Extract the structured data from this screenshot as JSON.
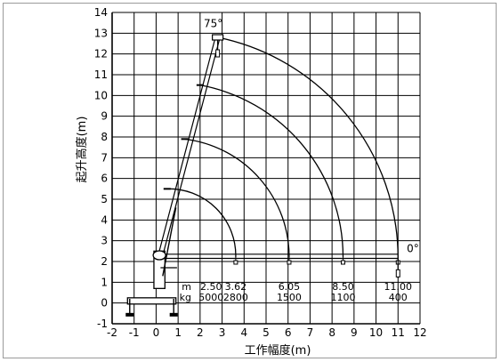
{
  "chart_data": {
    "type": "diagram",
    "xlabel": "工作幅度(m)",
    "ylabel": "起升高度(m)",
    "x_ticks": [
      "-2",
      "-1",
      "0",
      "1",
      "2",
      "3",
      "4",
      "5",
      "6",
      "7",
      "8",
      "9",
      "10",
      "11",
      "12"
    ],
    "y_ticks": [
      "-1",
      "0",
      "1",
      "2",
      "3",
      "4",
      "5",
      "6",
      "7",
      "8",
      "9",
      "10",
      "11",
      "12",
      "13",
      "14"
    ],
    "xlim": [
      -2,
      12
    ],
    "ylim": [
      -1,
      14
    ],
    "grid": true,
    "angle_labels": {
      "max": "75°",
      "min": "0°"
    },
    "boom_pivot": {
      "x": 0.2,
      "y": 2.3
    },
    "boom_tips": [
      {
        "x": 2.8,
        "y": 12.8
      },
      {
        "x": 2.0,
        "y": 10.5
      },
      {
        "x": 1.3,
        "y": 7.9
      },
      {
        "x": 0.5,
        "y": 5.5
      }
    ],
    "arc_ends": [
      {
        "x": 11.0,
        "y": 2.2
      },
      {
        "x": 8.5,
        "y": 2.2
      },
      {
        "x": 6.05,
        "y": 2.2
      },
      {
        "x": 3.62,
        "y": 2.2
      }
    ],
    "load_table": {
      "row_labels": [
        "m",
        "kg"
      ],
      "radius": [
        "2.50",
        "3.62",
        "6.05",
        "8.50",
        "11.00"
      ],
      "load": [
        "5000",
        "2800",
        "1500",
        "1100",
        "400"
      ]
    }
  }
}
